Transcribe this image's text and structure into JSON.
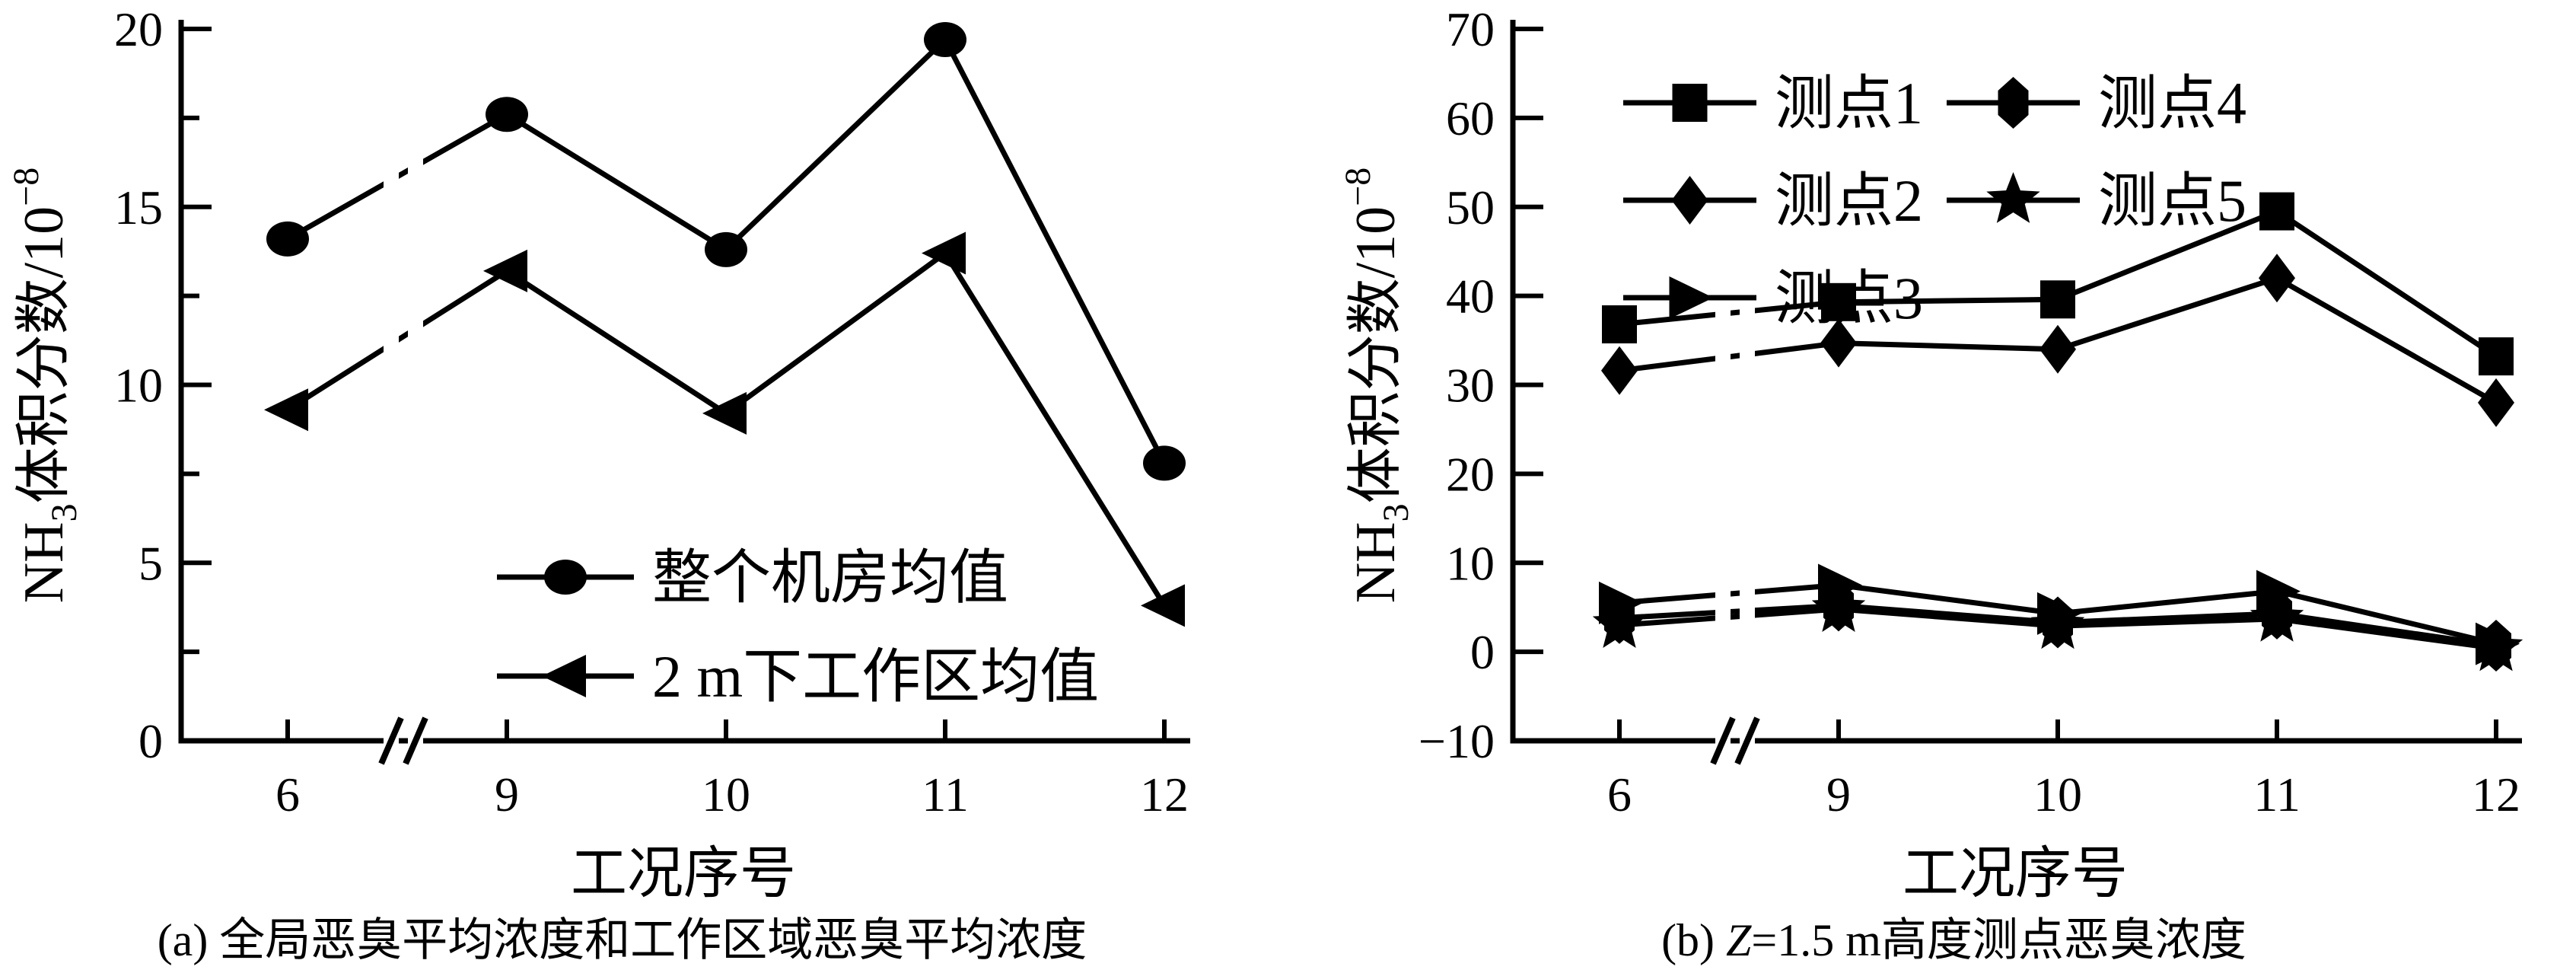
{
  "captions": {
    "a": "(a) 全局恶臭平均浓度和工作区域恶臭平均浓度",
    "b_pre": "(b) ",
    "b_var": "Z",
    "b_post": "=1.5 m高度测点恶臭浓度"
  },
  "chart_data": [
    {
      "type": "line",
      "panel": "a",
      "caption": "(a) 全局恶臭平均浓度和工作区域恶臭平均浓度",
      "xlabel": "工况序号",
      "ylabel_text": "NH3体积分数/10−8",
      "ylabel_parts": {
        "pre": "NH",
        "sub": "3",
        "mid": "体积分数/10",
        "sup": "−8"
      },
      "categories": [
        "6",
        "9",
        "10",
        "11",
        "12"
      ],
      "x_axis_break": "between 6 and 9",
      "ylim": [
        0,
        20
      ],
      "yticks": [
        {
          "v": 0,
          "label": "0"
        },
        {
          "v": 5,
          "label": "5"
        },
        {
          "v": 10,
          "label": "10"
        },
        {
          "v": 15,
          "label": "15"
        },
        {
          "v": 20,
          "label": "20"
        }
      ],
      "y_minor_step": 2.5,
      "grid": false,
      "legend_position": "inside lower-middle",
      "series": [
        {
          "name": "整个机房均值",
          "marker": "circle",
          "values": [
            14.1,
            17.6,
            13.8,
            19.7,
            7.8
          ]
        },
        {
          "name": "2 m下工作区均值",
          "marker": "triangle-left",
          "values": [
            9.3,
            13.2,
            9.2,
            13.7,
            3.8
          ]
        }
      ]
    },
    {
      "type": "line",
      "panel": "b",
      "caption": "(b) Z=1.5 m高度测点恶臭浓度",
      "xlabel": "工况序号",
      "ylabel_text": "NH3体积分数/10−8",
      "ylabel_parts": {
        "pre": "NH",
        "sub": "3",
        "mid": "体积分数/10",
        "sup": "−8"
      },
      "categories": [
        "6",
        "9",
        "10",
        "11",
        "12"
      ],
      "x_axis_break": "between 6 and 9",
      "ylim": [
        -10,
        70
      ],
      "yticks": [
        {
          "v": -10,
          "label": "−10"
        },
        {
          "v": 0,
          "label": "0"
        },
        {
          "v": 10,
          "label": "10"
        },
        {
          "v": 20,
          "label": "20"
        },
        {
          "v": 30,
          "label": "30"
        },
        {
          "v": 40,
          "label": "40"
        },
        {
          "v": 50,
          "label": "50"
        },
        {
          "v": 60,
          "label": "60"
        },
        {
          "v": 70,
          "label": "70"
        }
      ],
      "y_minor_step": null,
      "grid": false,
      "legend_position": "inside top, two columns",
      "series": [
        {
          "name": "测点1",
          "marker": "square",
          "values": [
            36.8,
            39.3,
            39.6,
            49.5,
            33.2
          ]
        },
        {
          "name": "测点2",
          "marker": "diamond",
          "values": [
            31.6,
            34.7,
            34.0,
            42.0,
            28.0
          ]
        },
        {
          "name": "测点3",
          "marker": "triangle-right",
          "values": [
            5.5,
            7.5,
            4.3,
            6.8,
            0.9
          ]
        },
        {
          "name": "测点4",
          "marker": "hexagon",
          "values": [
            3.8,
            5.2,
            3.3,
            4.3,
            0.7
          ]
        },
        {
          "name": "测点5",
          "marker": "star",
          "values": [
            3.0,
            4.8,
            2.9,
            3.7,
            0.4
          ]
        }
      ]
    }
  ]
}
